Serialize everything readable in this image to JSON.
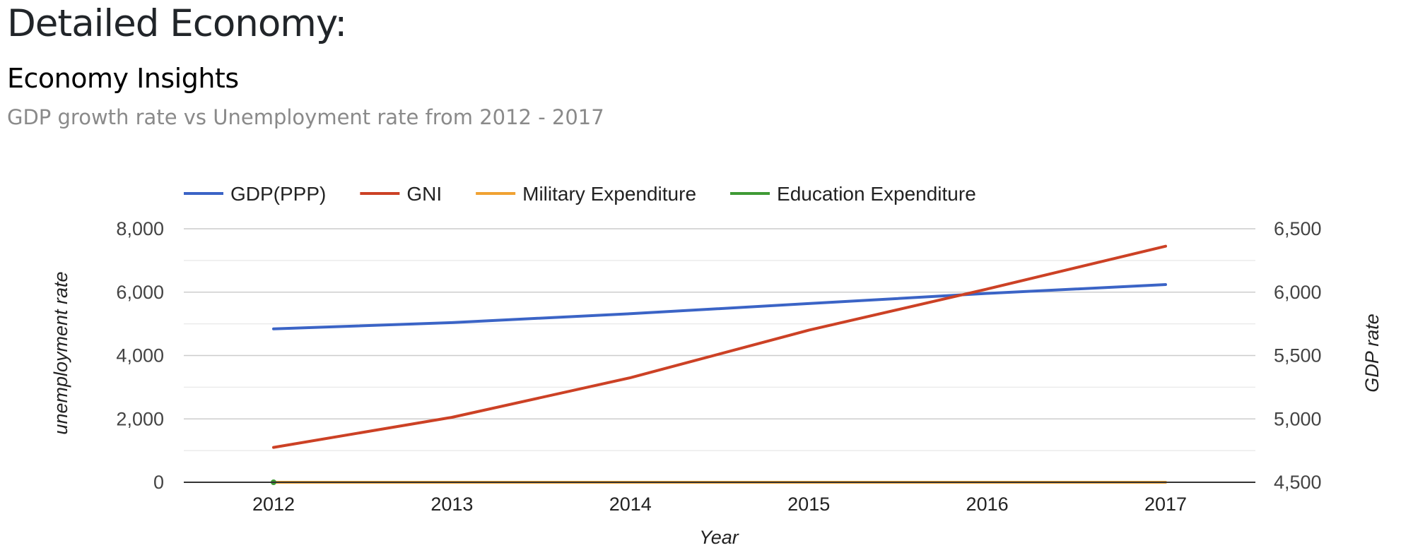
{
  "page": {
    "title": "Detailed Economy:",
    "card_title": "Economy Insights",
    "card_subtitle": "GDP growth rate vs Unemployment rate from 2012 - 2017"
  },
  "chart_data": {
    "type": "line",
    "x": [
      "2012",
      "2013",
      "2014",
      "2015",
      "2016",
      "2017"
    ],
    "xlabel": "Year",
    "ylabel_left": "unemployment rate",
    "ylabel_right": "GDP rate",
    "ylim_left": [
      0,
      8000
    ],
    "ylim_right": [
      4500,
      6500
    ],
    "yticks_left": [
      "0",
      "2,000",
      "4,000",
      "6,000",
      "8,000"
    ],
    "yticks_right": [
      "4,500",
      "5,000",
      "5,500",
      "6,000",
      "6,500"
    ],
    "grid": true,
    "legend_position": "top-left",
    "series": [
      {
        "name": "GDP(PPP)",
        "axis": "right",
        "color": "#3b64c6",
        "values": [
          5710,
          5760,
          5830,
          5910,
          5990,
          6060
        ]
      },
      {
        "name": "GNI",
        "axis": "left",
        "color": "#cc4125",
        "values": [
          1100,
          2050,
          3300,
          4800,
          6100,
          7450
        ]
      },
      {
        "name": "Military Expenditure",
        "axis": "left",
        "color": "#f0a232",
        "values": [
          0,
          0,
          0,
          0,
          0,
          0
        ]
      },
      {
        "name": "Education Expenditure",
        "axis": "left",
        "color": "#3f9a35",
        "values": [
          0,
          null,
          null,
          null,
          null,
          null
        ]
      }
    ]
  }
}
